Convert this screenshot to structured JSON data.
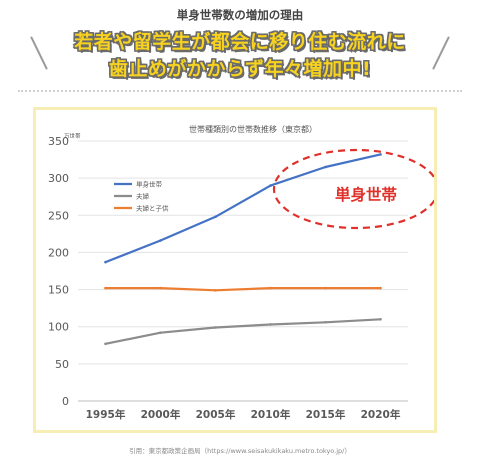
{
  "page": {
    "top_title": "単身世帯数の増加の理由",
    "headline_line1": "若者や留学生が都会に移り住む流れに",
    "headline_line2": "歯止めがかからず年々増加中!",
    "source": "引用：東京都政策企画局（https://www.seisakukikaku.metro.tokyo.jp/）"
  },
  "colors": {
    "single": "#4472c4",
    "couple": "#8c8c8c",
    "couple_child": "#ed7d31",
    "highlight": "#e0302a",
    "headline_fill": "#f7d21f"
  },
  "chart_data": {
    "type": "line",
    "title": "世帯種類別の世帯数推移（東京都）",
    "ylabel": "万世帯",
    "xlabel": "",
    "categories": [
      "1995年",
      "2000年",
      "2005年",
      "2010年",
      "2015年",
      "2020年"
    ],
    "ylim": [
      0,
      350
    ],
    "yticks": [
      0,
      50,
      100,
      150,
      200,
      250,
      300,
      350
    ],
    "grid": true,
    "legend_position": "top-left",
    "series": [
      {
        "name": "単身世帯",
        "values": [
          187,
          216,
          248,
          290,
          315,
          332
        ]
      },
      {
        "name": "夫婦",
        "values": [
          77,
          92,
          99,
          103,
          106,
          110
        ]
      },
      {
        "name": "夫婦と子供",
        "values": [
          152,
          152,
          149,
          152,
          152,
          152
        ]
      }
    ],
    "annotation": "単身世帯"
  }
}
